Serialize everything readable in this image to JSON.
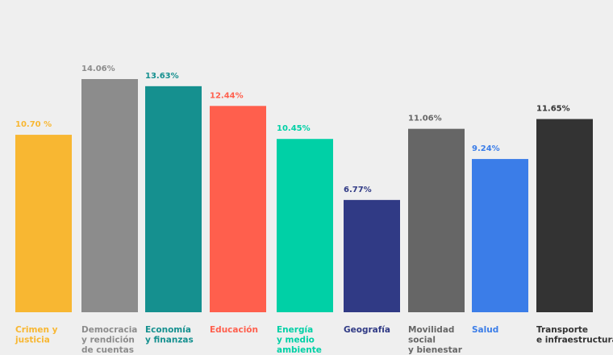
{
  "chart_data": {
    "type": "bar",
    "title": "",
    "xlabel": "",
    "ylabel": "",
    "ylim": [
      0,
      14.06
    ],
    "grid": false,
    "categories": [
      [
        "Crimen y",
        "justicia"
      ],
      [
        "Democracia",
        "y rendición",
        "de cuentas"
      ],
      [
        "Economía",
        "y finanzas"
      ],
      [
        "Educación"
      ],
      [
        "Energía",
        "y medio",
        "ambiente"
      ],
      [
        "Geografía"
      ],
      [
        "Movilidad",
        "social",
        "y bienestar"
      ],
      [
        "Salud"
      ],
      [
        "Transporte",
        "e infraestructura"
      ]
    ],
    "values": [
      10.7,
      14.06,
      13.63,
      12.44,
      10.45,
      6.77,
      11.06,
      9.24,
      11.65
    ],
    "value_labels": [
      "10.70 %",
      "14.06%",
      "13.63%",
      "12.44%",
      "10.45%",
      "6.77%",
      "11.06%",
      "9.24%",
      "11.65%"
    ],
    "colors": [
      "#f8b732",
      "#8c8c8c",
      "#15908f",
      "#ff5f4d",
      "#00d0a6",
      "#303a85",
      "#666666",
      "#3b7de8",
      "#333333"
    ]
  }
}
